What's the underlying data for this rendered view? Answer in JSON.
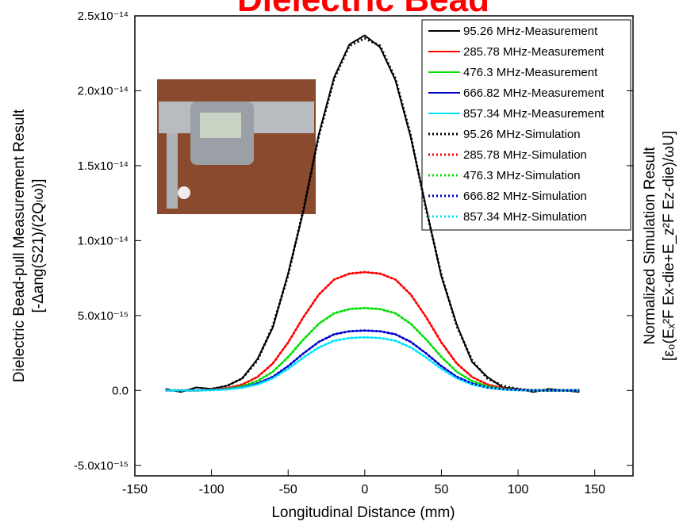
{
  "chart_data": {
    "type": "line",
    "title": "Dielectric Bead",
    "xlabel": "Longitudinal Distance (mm)",
    "ylabel": [
      "Dielectric Bead-pull Measurement Result",
      "[-Δang(S21)/(2Qₗω)]"
    ],
    "y2label": [
      "Normalized Simulation Result",
      "[ε₀(Eₓ²F Ex-die+E_z²F Ez-die)/ωU]"
    ],
    "xlim": [
      -150,
      175
    ],
    "xticks": [
      -150,
      -100,
      -50,
      0,
      50,
      100,
      150
    ],
    "ylim": [
      -5.7e-15,
      2.5e-14
    ],
    "yticks": [
      {
        "value": -5e-15,
        "label": "-5.0x10⁻¹⁵"
      },
      {
        "value": 0,
        "label": "0.0"
      },
      {
        "value": 5e-15,
        "label": "5.0x10⁻¹⁵"
      },
      {
        "value": 1e-14,
        "label": "1.0x10⁻¹⁴"
      },
      {
        "value": 1.5e-14,
        "label": "1.5x10⁻¹⁴"
      },
      {
        "value": 2e-14,
        "label": "2.0x10⁻¹⁴"
      },
      {
        "value": 2.5e-14,
        "label": "2.5x10⁻¹⁴"
      }
    ],
    "x": [
      -130,
      -120,
      -110,
      -100,
      -90,
      -80,
      -70,
      -60,
      -50,
      -40,
      -30,
      -20,
      -10,
      0,
      10,
      20,
      30,
      40,
      50,
      60,
      70,
      80,
      90,
      100,
      110,
      120,
      130,
      140
    ],
    "series": [
      {
        "name": "95.26 MHz-Measurement",
        "color": "#000000",
        "style": "solid",
        "values": [
          1e-16,
          -1e-16,
          2e-16,
          1e-16,
          3e-16,
          8e-16,
          2.1e-15,
          4.2e-15,
          7.8e-15,
          1.2e-14,
          1.71e-14,
          2.09e-14,
          2.31e-14,
          2.37e-14,
          2.29e-14,
          2.07e-14,
          1.69e-14,
          1.22e-14,
          7.6e-15,
          4.4e-15,
          1.9e-15,
          9e-16,
          2e-16,
          1e-16,
          -1e-16,
          1e-16,
          0,
          -1e-16
        ]
      },
      {
        "name": "285.78 MHz-Measurement",
        "color": "#ff0000",
        "style": "solid",
        "values": [
          0,
          0,
          0,
          5e-17,
          1.5e-16,
          4e-16,
          9e-16,
          1.8e-15,
          3.2e-15,
          4.9e-15,
          6.4e-15,
          7.4e-15,
          7.8e-15,
          7.9e-15,
          7.8e-15,
          7.4e-15,
          6.4e-15,
          4.9e-15,
          3.2e-15,
          1.8e-15,
          9e-16,
          4e-16,
          1.5e-16,
          5e-17,
          0,
          0,
          0,
          0
        ]
      },
      {
        "name": "476.3 MHz-Measurement",
        "color": "#00e000",
        "style": "solid",
        "values": [
          0,
          0,
          0,
          3e-17,
          1e-16,
          2.8e-16,
          6.3e-16,
          1.25e-15,
          2.23e-15,
          3.41e-15,
          4.45e-15,
          5.15e-15,
          5.43e-15,
          5.5e-15,
          5.43e-15,
          5.15e-15,
          4.45e-15,
          3.41e-15,
          2.23e-15,
          1.25e-15,
          6.3e-16,
          2.8e-16,
          1e-16,
          3e-17,
          0,
          0,
          0,
          0
        ]
      },
      {
        "name": "666.82 MHz-Measurement",
        "color": "#0000cc",
        "style": "solid",
        "values": [
          0,
          0,
          0,
          3e-17,
          8e-17,
          2e-16,
          4.6e-16,
          9.1e-16,
          1.62e-15,
          2.48e-15,
          3.24e-15,
          3.75e-15,
          3.95e-15,
          4e-15,
          3.95e-15,
          3.75e-15,
          3.24e-15,
          2.48e-15,
          1.62e-15,
          9.1e-16,
          4.6e-16,
          2e-16,
          8e-17,
          3e-17,
          0,
          0,
          0,
          0
        ]
      },
      {
        "name": "857.34 MHz-Measurement",
        "color": "#00e5ff",
        "style": "solid",
        "values": [
          0,
          0,
          0,
          2e-17,
          7e-17,
          1.8e-16,
          4e-16,
          8.1e-16,
          1.44e-15,
          2.2e-15,
          2.87e-15,
          3.32e-15,
          3.5e-15,
          3.55e-15,
          3.5e-15,
          3.32e-15,
          2.87e-15,
          2.2e-15,
          1.44e-15,
          8.1e-16,
          4e-16,
          1.8e-16,
          7e-17,
          2e-17,
          0,
          0,
          0,
          0
        ]
      },
      {
        "name": "95.26 MHz-Simulation",
        "color": "#000000",
        "style": "dotted",
        "values": [
          0,
          0,
          0,
          1e-16,
          3e-16,
          8e-16,
          2e-15,
          4.3e-15,
          7.7e-15,
          1.21e-14,
          1.7e-14,
          2.08e-14,
          2.3e-14,
          2.35e-14,
          2.3e-14,
          2.08e-14,
          1.7e-14,
          1.21e-14,
          7.7e-15,
          4.3e-15,
          2e-15,
          8e-16,
          3e-16,
          1e-16,
          0,
          0,
          0,
          0
        ]
      },
      {
        "name": "285.78 MHz-Simulation",
        "color": "#ff0000",
        "style": "dotted",
        "values": [
          0,
          0,
          0,
          5e-17,
          1.5e-16,
          4e-16,
          9e-16,
          1.8e-15,
          3.2e-15,
          4.9e-15,
          6.4e-15,
          7.4e-15,
          7.8e-15,
          7.9e-15,
          7.8e-15,
          7.4e-15,
          6.4e-15,
          4.9e-15,
          3.2e-15,
          1.8e-15,
          9e-16,
          4e-16,
          1.5e-16,
          5e-17,
          0,
          0,
          0,
          0
        ]
      },
      {
        "name": "476.3 MHz-Simulation",
        "color": "#00e000",
        "style": "dotted",
        "values": [
          0,
          0,
          0,
          3e-17,
          1e-16,
          2.8e-16,
          6.3e-16,
          1.25e-15,
          2.23e-15,
          3.41e-15,
          4.45e-15,
          5.15e-15,
          5.43e-15,
          5.5e-15,
          5.43e-15,
          5.15e-15,
          4.45e-15,
          3.41e-15,
          2.23e-15,
          1.25e-15,
          6.3e-16,
          2.8e-16,
          1e-16,
          3e-17,
          0,
          0,
          0,
          0
        ]
      },
      {
        "name": "666.82 MHz-Simulation",
        "color": "#0000cc",
        "style": "dotted",
        "values": [
          0,
          0,
          0,
          3e-17,
          8e-17,
          2e-16,
          4.6e-16,
          9.1e-16,
          1.62e-15,
          2.48e-15,
          3.24e-15,
          3.75e-15,
          3.95e-15,
          4e-15,
          3.95e-15,
          3.75e-15,
          3.24e-15,
          2.48e-15,
          1.62e-15,
          9.1e-16,
          4.6e-16,
          2e-16,
          8e-17,
          3e-17,
          0,
          0,
          0,
          0
        ]
      },
      {
        "name": "857.34 MHz-Simulation",
        "color": "#00e5ff",
        "style": "dotted",
        "values": [
          0,
          0,
          0,
          2e-17,
          7e-17,
          1.8e-16,
          4e-16,
          8.1e-16,
          1.44e-15,
          2.2e-15,
          2.87e-15,
          3.32e-15,
          3.5e-15,
          3.55e-15,
          3.5e-15,
          3.32e-15,
          2.87e-15,
          2.2e-15,
          1.44e-15,
          8.1e-16,
          4e-16,
          1.8e-16,
          7e-17,
          2e-17,
          0,
          0,
          0,
          0
        ]
      }
    ]
  }
}
